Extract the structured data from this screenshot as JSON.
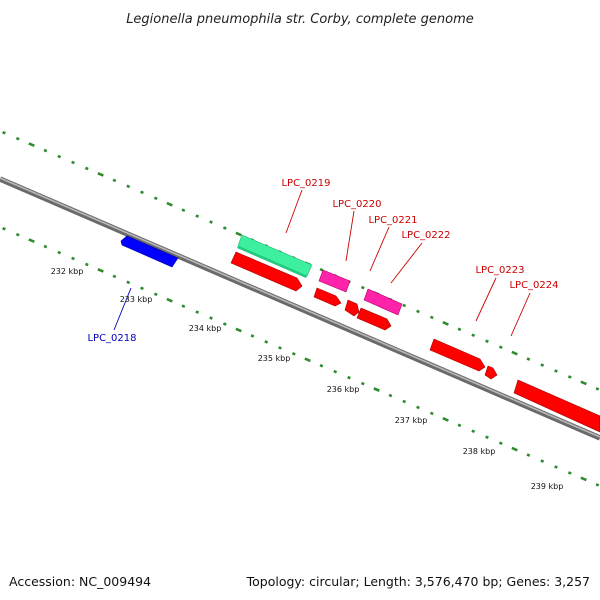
{
  "title": "Legionella pneumophila str. Corby, complete genome",
  "footer": {
    "accession": "Accession: NC_009494",
    "topology": "Topology: circular; Length: 3,576,470 bp; Genes: 3,257"
  },
  "scale_labels": [
    "232 kbp",
    "233 kbp",
    "234 kbp",
    "235 kbp",
    "236 kbp",
    "237 kbp",
    "238 kbp",
    "239 kbp"
  ],
  "gene_labels": [
    {
      "id": "LPC_0218",
      "text": "LPC_0218",
      "color": "#0000bb"
    },
    {
      "id": "LPC_0219",
      "text": "LPC_0219",
      "color": "#cc0000"
    },
    {
      "id": "LPC_0220",
      "text": "LPC_0220",
      "color": "#cc0000"
    },
    {
      "id": "LPC_0221",
      "text": "LPC_0221",
      "color": "#cc0000"
    },
    {
      "id": "LPC_0222",
      "text": "LPC_0222",
      "color": "#cc0000"
    },
    {
      "id": "LPC_0223",
      "text": "LPC_0223",
      "color": "#cc0000"
    },
    {
      "id": "LPC_0224",
      "text": "LPC_0224",
      "color": "#cc0000"
    }
  ],
  "colors": {
    "backbone": "#808080",
    "tick": "#2e8b2e",
    "forward_cds": "#ff0000",
    "reverse_cds": "#0000ff",
    "rRNA": "#33ee99",
    "tRNA": "#ff22aa"
  }
}
